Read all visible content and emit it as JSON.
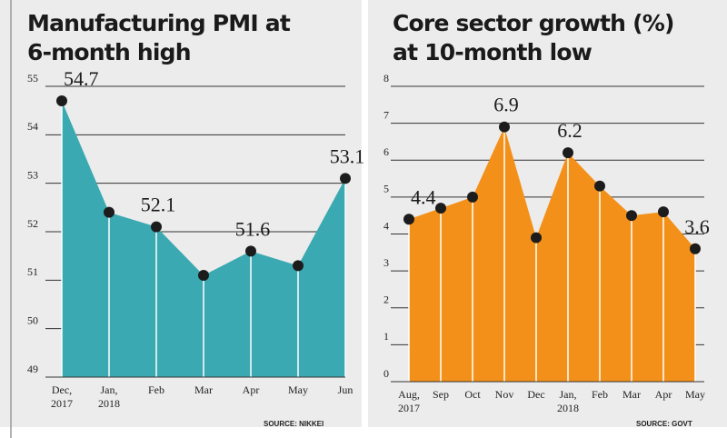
{
  "chart_data": [
    {
      "type": "area",
      "title": "Manufacturing PMI at\n6-month high",
      "categories": [
        "Dec,\n2017",
        "Jan,\n2018",
        "Feb",
        "Mar",
        "Apr",
        "May",
        "Jun"
      ],
      "values": [
        54.7,
        52.4,
        52.1,
        51.1,
        51.6,
        51.3,
        53.1
      ],
      "value_labels": [
        "54.7",
        null,
        "52.1",
        null,
        "51.6",
        null,
        "53.1"
      ],
      "color": "#3aa9b1",
      "marker_color": "#1c1c1c",
      "ylim": [
        49,
        55
      ],
      "yticks": [
        49,
        50,
        51,
        52,
        53,
        54,
        55
      ],
      "grid": true,
      "source": "SOURCE: NIKKEI"
    },
    {
      "type": "area",
      "title": "Core sector growth (%)\nat 10-month low",
      "categories": [
        "Aug,\n2017",
        "Sep",
        "Oct",
        "Nov",
        "Dec",
        "Jan,\n2018",
        "Feb",
        "Mar",
        "Apr",
        "May"
      ],
      "values": [
        4.4,
        4.7,
        5.0,
        6.9,
        3.9,
        6.2,
        5.3,
        4.5,
        4.6,
        3.6
      ],
      "value_labels": [
        "4.4",
        null,
        null,
        "6.9",
        null,
        "6.2",
        null,
        null,
        null,
        "3.6"
      ],
      "color": "#f39019",
      "marker_color": "#1c1c1c",
      "ylim": [
        0,
        8
      ],
      "yticks": [
        0,
        1,
        2,
        3,
        4,
        5,
        6,
        7,
        8
      ],
      "grid": true,
      "source": "SOURCE: GOVT"
    }
  ]
}
